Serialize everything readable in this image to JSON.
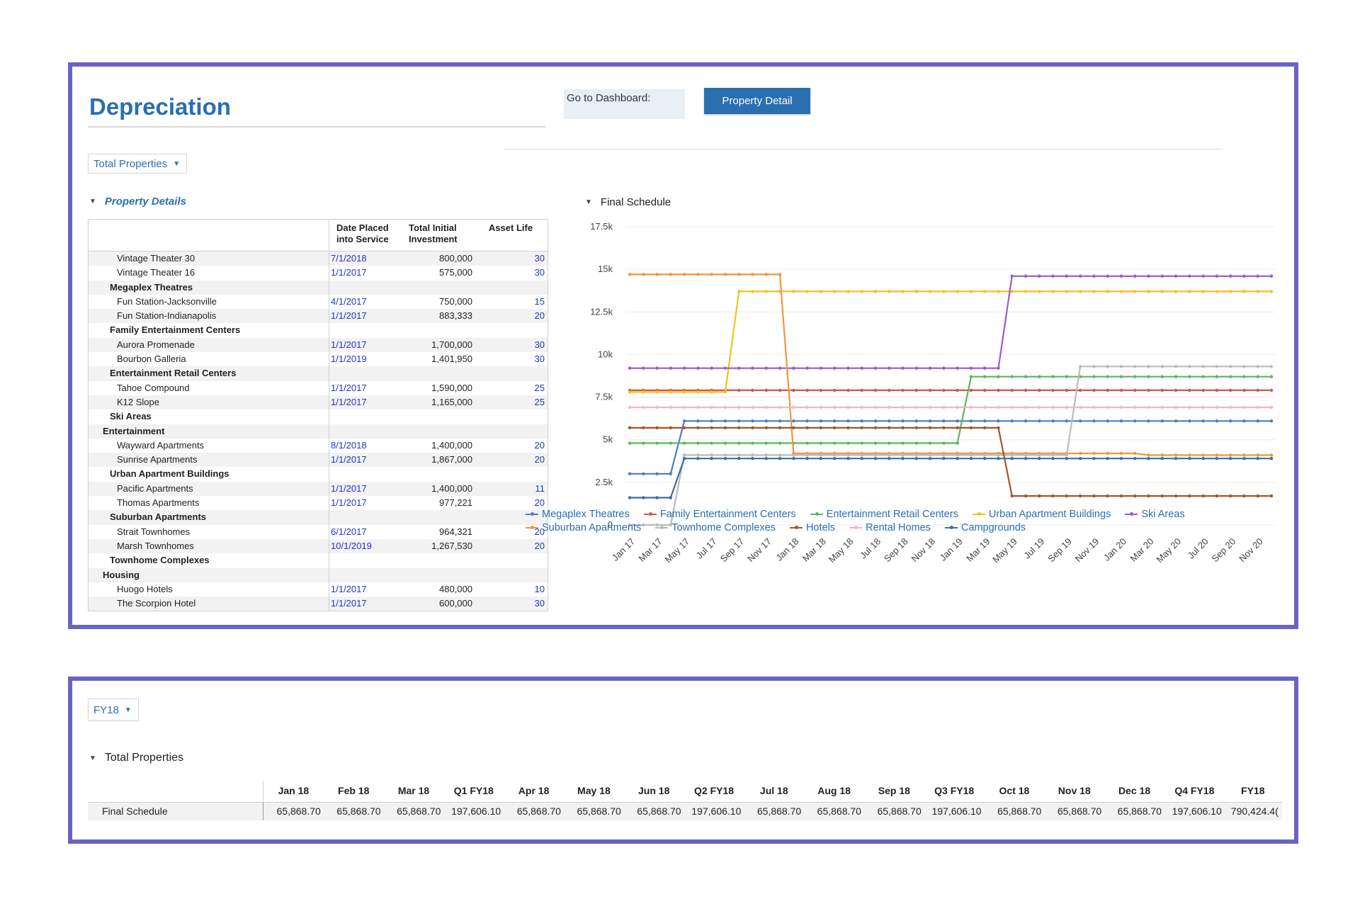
{
  "header": {
    "title": "Depreciation",
    "dashboard_label": "Go to Dashboard:",
    "dashboard_button": "Property Detail"
  },
  "filter": {
    "selected": "Total Properties"
  },
  "property_details": {
    "section_label": "Property Details",
    "columns": [
      "Date Placed\ninto Service",
      "Total Initial\nInvestment",
      "Asset Life"
    ],
    "rows": [
      {
        "level": 2,
        "name": "Vintage Theater 30",
        "date": "7/1/2018",
        "investment": "800,000",
        "life": "30"
      },
      {
        "level": 2,
        "name": "Vintage Theater 16",
        "date": "1/1/2017",
        "investment": "575,000",
        "life": "30"
      },
      {
        "level": 1,
        "name": "Megaplex Theatres",
        "date": "",
        "investment": "",
        "life": ""
      },
      {
        "level": 2,
        "name": "Fun Station-Jacksonville",
        "date": "4/1/2017",
        "investment": "750,000",
        "life": "15"
      },
      {
        "level": 2,
        "name": "Fun Station-Indianapolis",
        "date": "1/1/2017",
        "investment": "883,333",
        "life": "20"
      },
      {
        "level": 1,
        "name": "Family Entertainment Centers",
        "date": "",
        "investment": "",
        "life": ""
      },
      {
        "level": 2,
        "name": "Aurora Promenade",
        "date": "1/1/2017",
        "investment": "1,700,000",
        "life": "30"
      },
      {
        "level": 2,
        "name": "Bourbon Galleria",
        "date": "1/1/2019",
        "investment": "1,401,950",
        "life": "30"
      },
      {
        "level": 1,
        "name": "Entertainment Retail Centers",
        "date": "",
        "investment": "",
        "life": ""
      },
      {
        "level": 2,
        "name": "Tahoe Compound",
        "date": "1/1/2017",
        "investment": "1,590,000",
        "life": "25"
      },
      {
        "level": 2,
        "name": "K12 Slope",
        "date": "1/1/2017",
        "investment": "1,165,000",
        "life": "25"
      },
      {
        "level": 1,
        "name": "Ski Areas",
        "date": "",
        "investment": "",
        "life": ""
      },
      {
        "level": 0,
        "name": "Entertainment",
        "date": "",
        "investment": "",
        "life": ""
      },
      {
        "level": 2,
        "name": "Wayward Apartments",
        "date": "8/1/2018",
        "investment": "1,400,000",
        "life": "20"
      },
      {
        "level": 2,
        "name": "Sunrise Apartments",
        "date": "1/1/2017",
        "investment": "1,867,000",
        "life": "20"
      },
      {
        "level": 1,
        "name": "Urban Apartment Buildings",
        "date": "",
        "investment": "",
        "life": ""
      },
      {
        "level": 2,
        "name": "Pacific Apartments",
        "date": "1/1/2017",
        "investment": "1,400,000",
        "life": "11"
      },
      {
        "level": 2,
        "name": "Thomas Apartments",
        "date": "1/1/2017",
        "investment": "977,221",
        "life": "20"
      },
      {
        "level": 1,
        "name": "Suburban Apartments",
        "date": "",
        "investment": "",
        "life": ""
      },
      {
        "level": 2,
        "name": "Strait Townhomes",
        "date": "6/1/2017",
        "investment": "964,321",
        "life": "20"
      },
      {
        "level": 2,
        "name": "Marsh Townhomes",
        "date": "10/1/2019",
        "investment": "1,267,530",
        "life": "20"
      },
      {
        "level": 1,
        "name": "Townhome Complexes",
        "date": "",
        "investment": "",
        "life": ""
      },
      {
        "level": 0,
        "name": "Housing",
        "date": "",
        "investment": "",
        "life": ""
      },
      {
        "level": 2,
        "name": "Huogo Hotels",
        "date": "1/1/2017",
        "investment": "480,000",
        "life": "10"
      },
      {
        "level": 2,
        "name": "The Scorpion Hotel",
        "date": "1/1/2017",
        "investment": "600,000",
        "life": "30"
      }
    ]
  },
  "chart_data": {
    "type": "line",
    "title": "Final Schedule",
    "xlabel": "",
    "ylabel": "",
    "ylim": [
      0,
      17500
    ],
    "yticks": [
      0,
      2500,
      5000,
      7500,
      10000,
      12500,
      15000,
      17500
    ],
    "ytick_labels": [
      "0",
      "2.5k",
      "5k",
      "7.5k",
      "10k",
      "12.5k",
      "15k",
      "17.5k"
    ],
    "x_tick_labels": [
      "Jan 17",
      "Mar 17",
      "May 17",
      "Jul 17",
      "Sep 17",
      "Nov 17",
      "Jan 18",
      "Mar 18",
      "May 18",
      "Jul 18",
      "Sep 18",
      "Nov 18",
      "Jan 19",
      "Mar 19",
      "May 19",
      "Jul 19",
      "Sep 19",
      "Nov 19",
      "Jan 20",
      "Mar 20",
      "May 20",
      "Jul 20",
      "Sep 20",
      "Nov 20"
    ],
    "months": 48,
    "series": [
      {
        "name": "Megaplex Theatres",
        "color": "#4a7fc1",
        "segments": [
          [
            0,
            3,
            3000
          ],
          [
            4,
            48,
            6100
          ]
        ]
      },
      {
        "name": "Family Entertainment Centers",
        "color": "#d9534f",
        "segments": [
          [
            0,
            48,
            7900
          ]
        ]
      },
      {
        "name": "Entertainment Retail Centers",
        "color": "#5cb85c",
        "segments": [
          [
            0,
            24,
            4800
          ],
          [
            25,
            48,
            8700
          ]
        ]
      },
      {
        "name": "Urban Apartment Buildings",
        "color": "#f0c419",
        "segments": [
          [
            0,
            7,
            7800
          ],
          [
            8,
            48,
            13700
          ]
        ]
      },
      {
        "name": "Ski Areas",
        "color": "#9b59d0",
        "segments": [
          [
            0,
            27,
            9200
          ],
          [
            28,
            48,
            14600
          ]
        ]
      },
      {
        "name": "Suburban Apartments",
        "color": "#f0963c",
        "segments": [
          [
            0,
            11,
            14700
          ],
          [
            12,
            37,
            4200
          ],
          [
            38,
            48,
            4100
          ]
        ]
      },
      {
        "name": "Townhome Complexes",
        "color": "#bbbbbb",
        "segments": [
          [
            0,
            3,
            0
          ],
          [
            4,
            32,
            4100
          ],
          [
            33,
            48,
            9300
          ]
        ]
      },
      {
        "name": "Hotels",
        "color": "#a0582a",
        "segments": [
          [
            0,
            27,
            5700
          ],
          [
            28,
            48,
            1700
          ]
        ]
      },
      {
        "name": "Rental Homes",
        "color": "#f3b6c6",
        "segments": [
          [
            0,
            48,
            6900
          ]
        ]
      },
      {
        "name": "Campgrounds",
        "color": "#3a6ea5",
        "segments": [
          [
            0,
            3,
            1600
          ],
          [
            4,
            48,
            3900
          ]
        ]
      }
    ]
  },
  "legend_rows": [
    [
      "Megaplex Theatres",
      "Family Entertainment Centers",
      "Entertainment Retail Centers",
      "Urban Apartment Buildings",
      "Ski Areas"
    ],
    [
      "Suburban Apartments",
      "Townhome Complexes",
      "Hotels",
      "Rental Homes",
      "Campgrounds"
    ]
  ],
  "period_filter": {
    "selected": "FY18"
  },
  "summary": {
    "section_label": "Total Properties",
    "columns": [
      "Jan 18",
      "Feb 18",
      "Mar 18",
      "Q1 FY18",
      "Apr 18",
      "May 18",
      "Jun 18",
      "Q2 FY18",
      "Jul 18",
      "Aug 18",
      "Sep 18",
      "Q3 FY18",
      "Oct 18",
      "Nov 18",
      "Dec 18",
      "Q4 FY18",
      "FY18"
    ],
    "rows": [
      {
        "label": "Final Schedule",
        "values": [
          "65,868.70",
          "65,868.70",
          "65,868.70",
          "197,606.10",
          "65,868.70",
          "65,868.70",
          "65,868.70",
          "197,606.10",
          "65,868.70",
          "65,868.70",
          "65,868.70",
          "197,606.10",
          "65,868.70",
          "65,868.70",
          "65,868.70",
          "197,606.10",
          "790,424.4("
        ]
      }
    ]
  }
}
